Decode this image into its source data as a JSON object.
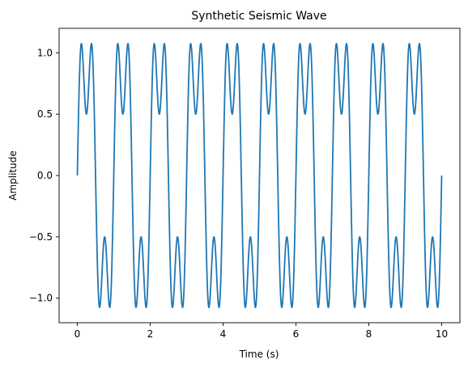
{
  "chart_data": {
    "type": "line",
    "title": "Synthetic Seismic Wave",
    "xlabel": "Time (s)",
    "ylabel": "Amplitude",
    "xlim": [
      -0.5,
      10.5
    ],
    "ylim": [
      -1.2,
      1.2
    ],
    "xticks": [
      0,
      2,
      4,
      6,
      8,
      10
    ],
    "xtick_labels": [
      "0",
      "2",
      "4",
      "6",
      "8",
      "10"
    ],
    "yticks": [
      -1.0,
      -0.5,
      0.0,
      0.5,
      1.0
    ],
    "ytick_labels": [
      "−1.0",
      "−0.5",
      "0.0",
      "0.5",
      "1.0"
    ],
    "grid": false,
    "legend": "none",
    "series": [
      {
        "color": "#1f77b4",
        "function": "sin(2*pi*1*t) + 0.5*sin(2*pi*3*t)",
        "x_range": [
          0,
          10
        ],
        "samples": 1000
      }
    ]
  }
}
